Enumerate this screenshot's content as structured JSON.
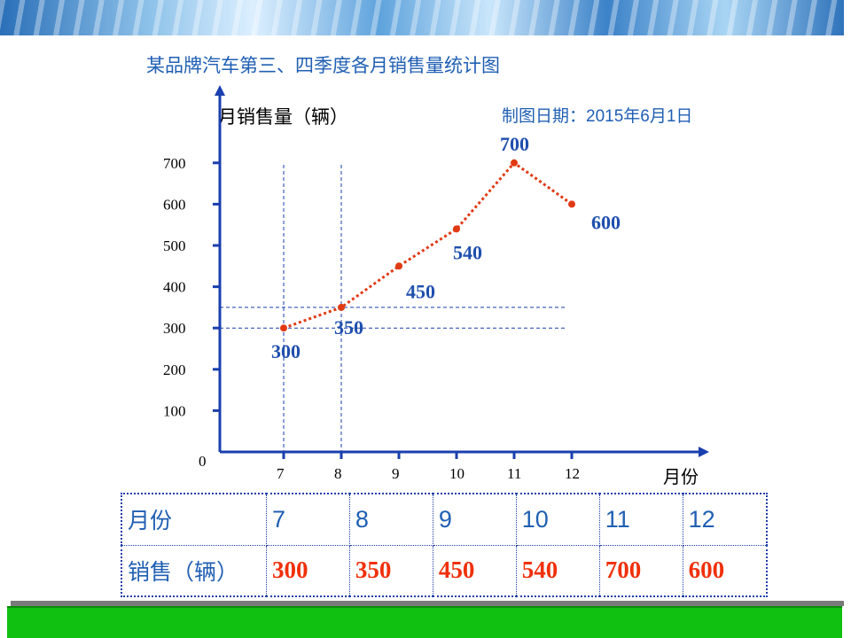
{
  "title": "某品牌汽车第三、四季度各月销售量统计图",
  "date_label": "制图日期：2015年6月1日",
  "chart_data": {
    "type": "line",
    "title": "某品牌汽车第三、四季度各月销售量统计图",
    "ylabel": "月销售量（辆）",
    "xlabel": "月份",
    "x_ticks": [
      "7",
      "8",
      "9",
      "10",
      "11",
      "12"
    ],
    "y_ticks": [
      "0",
      "100",
      "200",
      "300",
      "400",
      "500",
      "600",
      "700"
    ],
    "ylim": [
      0,
      700
    ],
    "series": [
      {
        "x": [
          7,
          8,
          9,
          10,
          11,
          12
        ],
        "values": [
          300,
          350,
          450,
          540,
          700,
          600
        ],
        "labels": [
          "300",
          "350",
          "450",
          "540",
          "700",
          "600"
        ]
      }
    ],
    "grid": "dashed guide lines at 7 and 8",
    "line_color": "#e03a14",
    "label_color": "#1f4fae"
  },
  "table": {
    "row1_header": "月份",
    "row2_header": "销售（辆）",
    "months": [
      "7",
      "8",
      "9",
      "10",
      "11",
      "12"
    ],
    "values": [
      "300",
      "350",
      "450",
      "540",
      "700",
      "600"
    ]
  },
  "colors": {
    "title": "#1f5fb3",
    "axis": "#1a3fae",
    "table_value": "#f0300a",
    "bottom_bar": "#11c111"
  }
}
